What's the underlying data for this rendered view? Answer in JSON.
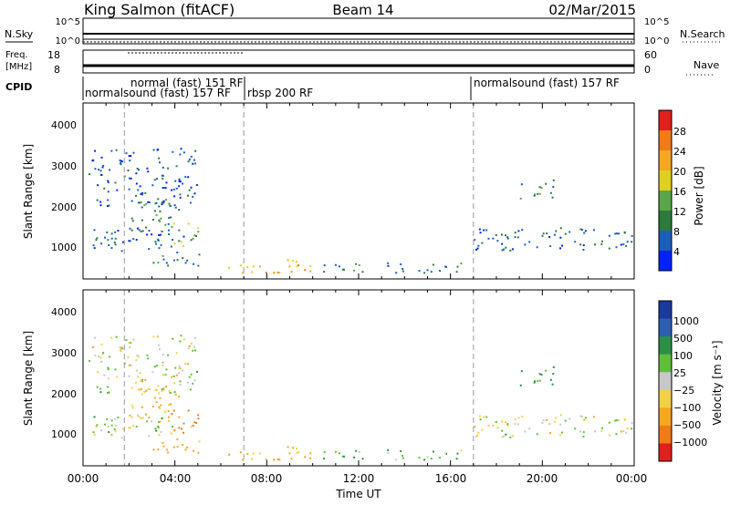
{
  "header": {
    "site": "King Salmon (fitACF)",
    "beam": "Beam 14",
    "date": "02/Mar/2015"
  },
  "strips": {
    "nsky_label": "N.Sky",
    "nsky_ticks": [
      "10^5",
      "10^0"
    ],
    "nsearch_label": "N.Search",
    "nsearch_ticks": [
      "10^5",
      "10^0"
    ],
    "freq_label_line1": "Freq.",
    "freq_label_line2": "[MHz]",
    "freq_ticks": [
      "18",
      "8"
    ],
    "nave_label": "Nave",
    "nave_ticks": [
      "60",
      "0"
    ],
    "cpid_label": "CPID",
    "cpid_segments": [
      {
        "name": "normalsound (fast) 157 RF",
        "start_hour": 0.0,
        "end_hour": 7.0
      },
      {
        "name": "normal (fast) 151 RF",
        "start_hour": 1.8,
        "end_hour": 7.0
      },
      {
        "name": "rbsp 200 RF",
        "start_hour": 7.0,
        "end_hour": 17.0
      },
      {
        "name": "normalsound (fast) 157 RF",
        "start_hour": 17.0,
        "end_hour": 24.0
      }
    ]
  },
  "panels": {
    "power": {
      "ylabel": "Slant Range [km]",
      "yticks": [
        "4000",
        "3000",
        "2000",
        "1000"
      ],
      "colorbar_label": "Power [dB]",
      "colorbar_ticks": [
        "28",
        "24",
        "20",
        "16",
        "12",
        "8",
        "4"
      ]
    },
    "velocity": {
      "ylabel": "Slant Range [km]",
      "yticks": [
        "4000",
        "3000",
        "2000",
        "1000"
      ],
      "colorbar_label": "Velocity [m s⁻¹]",
      "colorbar_ticks": [
        "1000",
        "500",
        "100",
        "25",
        "−25",
        "−100",
        "−500",
        "−1000"
      ]
    }
  },
  "xaxis": {
    "label": "Time UT",
    "ticks": [
      "00:00",
      "04:00",
      "08:00",
      "12:00",
      "16:00",
      "20:00",
      "00:00"
    ]
  },
  "chart_data": {
    "type": "heatmap",
    "title": "King Salmon (fitACF)",
    "x_unit": "hours UT",
    "xlim": [
      0,
      24
    ],
    "ylim_km": [
      180,
      4600
    ],
    "power_colors": [
      "#0022ff",
      "#1a5fb8",
      "#2c7a3c",
      "#5aa64a",
      "#e0d020",
      "#f5a623",
      "#f07b1a",
      "#e0201c"
    ],
    "power_levels_db": [
      4,
      8,
      12,
      16,
      20,
      24,
      28,
      30
    ],
    "velocity_colors": [
      "#e0201c",
      "#f07b1a",
      "#f5a623",
      "#f2d04a",
      "#c8c8c8",
      "#5fbf3a",
      "#2d8f46",
      "#2c5fb0",
      "#1a3b9c"
    ],
    "velocity_levels": [
      -1000,
      -500,
      -100,
      -25,
      25,
      100,
      500,
      1000,
      1200
    ],
    "echo_regions": [
      {
        "t0": 0.0,
        "t1": 4.8,
        "r0": 900,
        "r1": 1500,
        "power_db": 6,
        "velocity": 0
      },
      {
        "t0": 2.0,
        "t1": 4.2,
        "r0": 1400,
        "r1": 2200,
        "power_db": 10,
        "velocity": -150
      },
      {
        "t0": 3.8,
        "t1": 5.0,
        "r0": 1000,
        "r1": 1600,
        "power_db": 14,
        "velocity": -600
      },
      {
        "t0": 3.0,
        "t1": 5.2,
        "r0": 500,
        "r1": 900,
        "power_db": 10,
        "velocity": -200
      },
      {
        "t0": 6.3,
        "t1": 10.0,
        "r0": 350,
        "r1": 700,
        "power_db": 20,
        "velocity": -150
      },
      {
        "t0": 10.0,
        "t1": 16.5,
        "r0": 350,
        "r1": 600,
        "power_db": 8,
        "velocity": 60
      },
      {
        "t0": 17.0,
        "t1": 24.0,
        "r0": 900,
        "r1": 1500,
        "power_db": 7,
        "velocity": 0
      },
      {
        "t0": 19.0,
        "t1": 20.5,
        "r0": 2200,
        "r1": 2700,
        "power_db": 9,
        "velocity": 150
      },
      {
        "t0": 0.2,
        "t1": 5.0,
        "r0": 2000,
        "r1": 3500,
        "power_db": 5,
        "velocity": 0
      }
    ],
    "vertical_markers_hours": [
      1.8,
      7.0,
      17.0
    ]
  }
}
